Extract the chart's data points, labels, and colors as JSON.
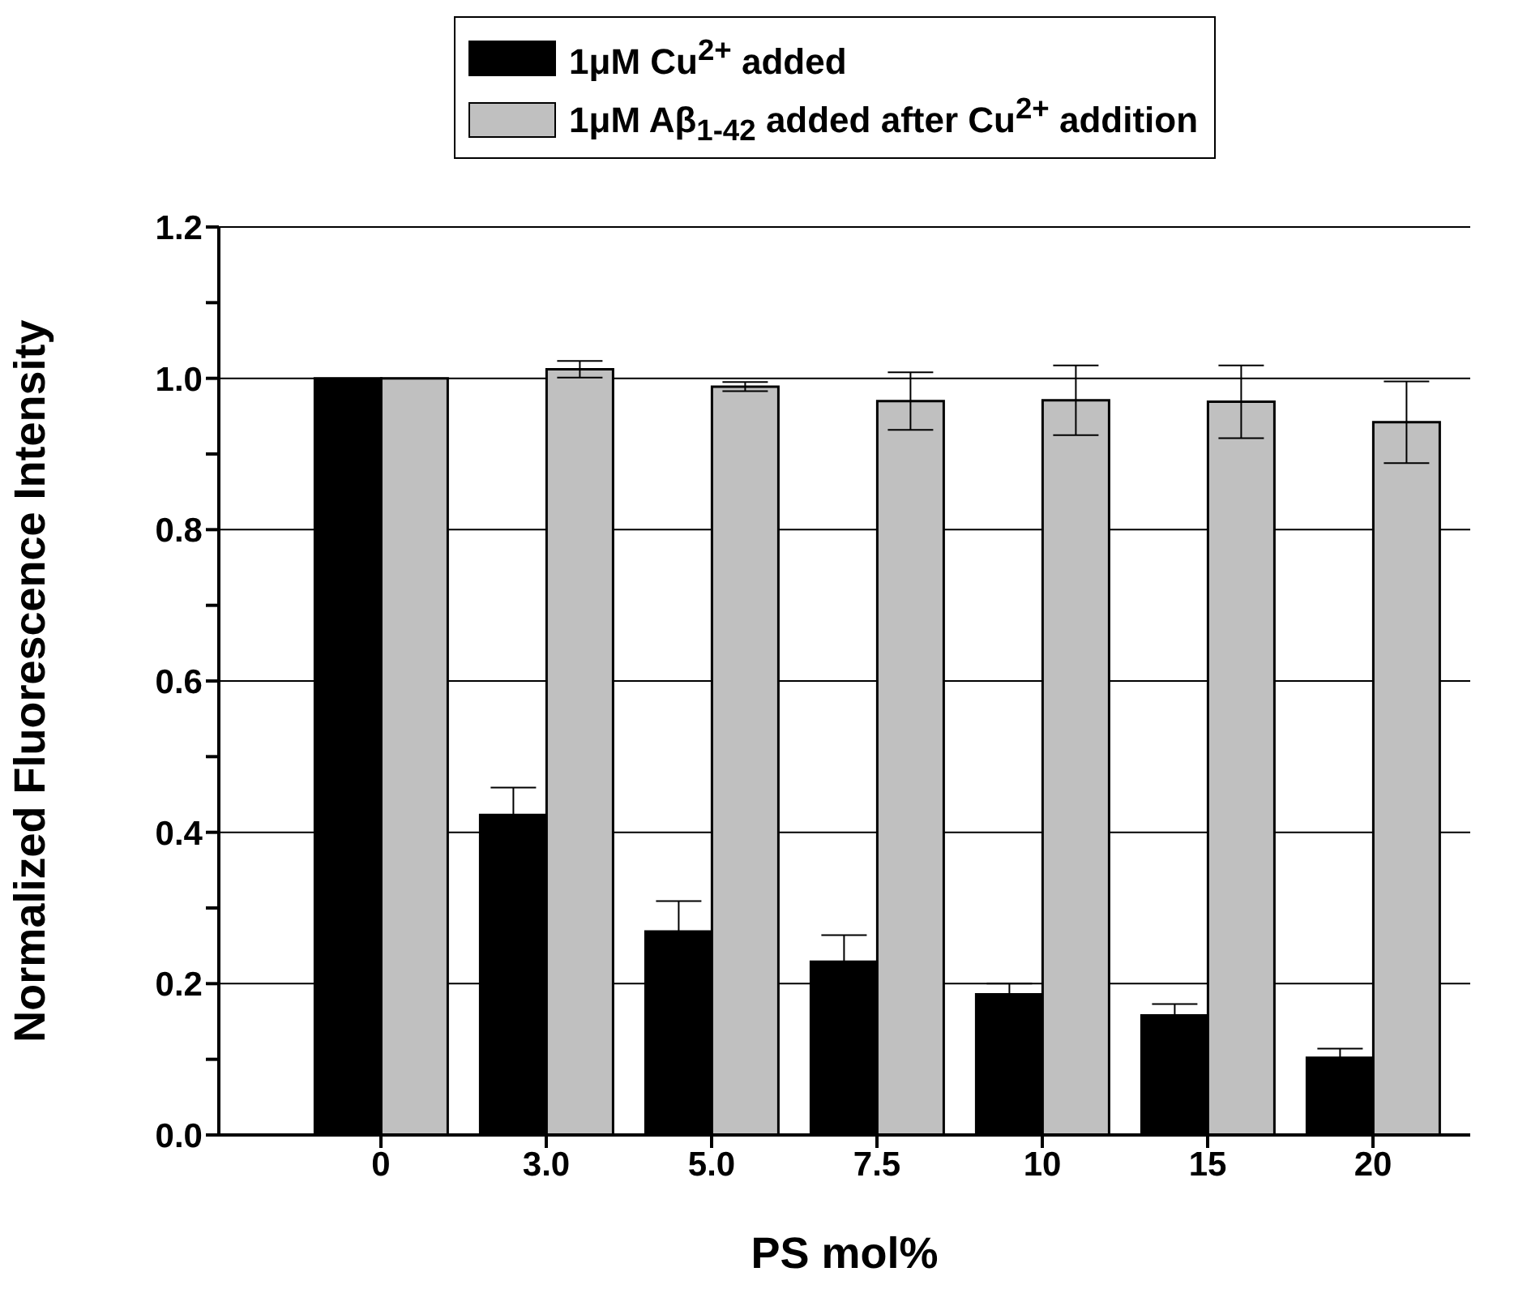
{
  "chart_data": {
    "type": "bar",
    "xlabel": "PS mol%",
    "ylabel": "Normalized Fluorescence Intensity",
    "categories": [
      "0",
      "3.0",
      "5.0",
      "7.5",
      "10",
      "15",
      "20"
    ],
    "series": [
      {
        "name": "1μM Cu$^{2+}$ added",
        "color": "#000000",
        "values": [
          1.0,
          0.423,
          0.269,
          0.229,
          0.186,
          0.158,
          0.102
        ],
        "errors": [
          null,
          0.036,
          0.04,
          0.035,
          0.014,
          0.015,
          0.012
        ]
      },
      {
        "name": "1μM Aβ$_{1-42}$ added after Cu$^{2+}$ addition",
        "color": "#c0c0c0",
        "values": [
          1.0,
          1.012,
          0.989,
          0.97,
          0.971,
          0.969,
          0.942
        ],
        "errors": [
          null,
          0.011,
          0.006,
          0.038,
          0.046,
          0.048,
          0.054
        ]
      }
    ],
    "ylim": [
      0,
      1.2
    ],
    "yticks": [
      {
        "value": 0,
        "label": "0.0"
      },
      {
        "value": 0.1,
        "label": null
      },
      {
        "value": 0.2,
        "label": "0.2"
      },
      {
        "value": 0.3,
        "label": null
      },
      {
        "value": 0.4,
        "label": "0.4"
      },
      {
        "value": 0.5,
        "label": null
      },
      {
        "value": 0.6,
        "label": "0.6"
      },
      {
        "value": 0.7,
        "label": null
      },
      {
        "value": 0.8,
        "label": "0.8"
      },
      {
        "value": 0.9,
        "label": null
      },
      {
        "value": 1.0,
        "label": "1.0"
      },
      {
        "value": 1.1,
        "label": null
      },
      {
        "value": 1.2,
        "label": "1.2"
      }
    ],
    "grid": "y",
    "legend": "top"
  }
}
